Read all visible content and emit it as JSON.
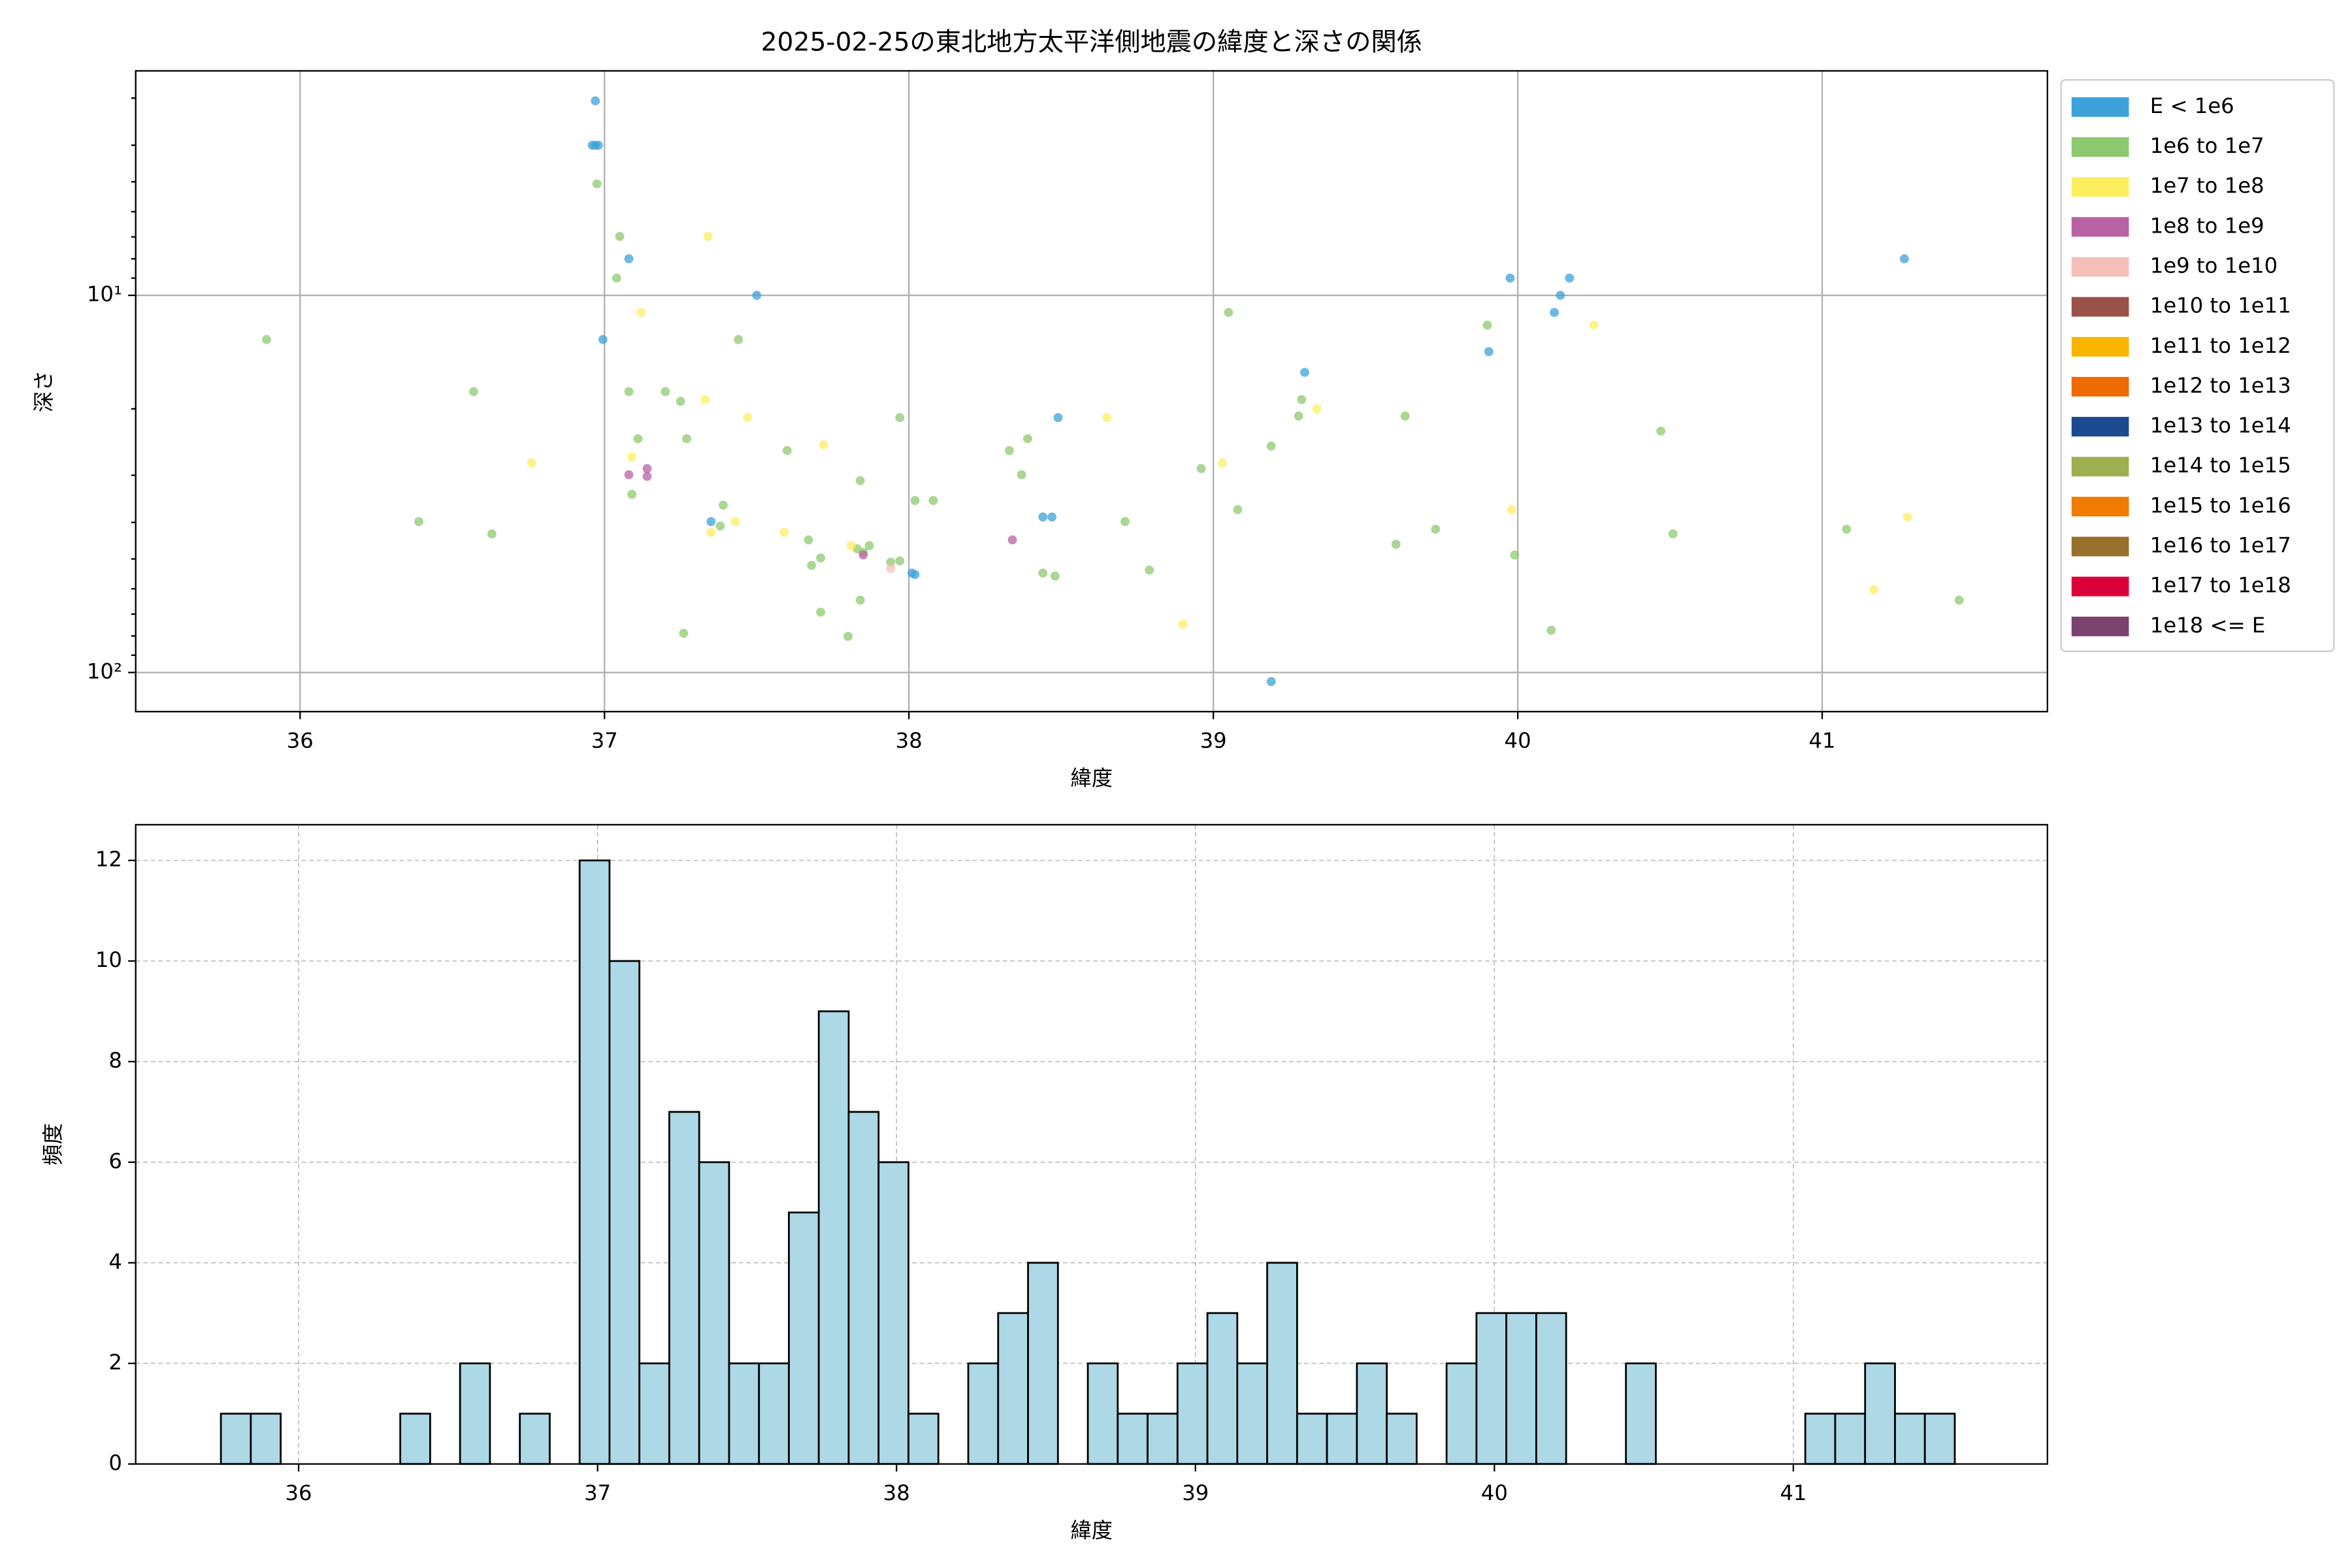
{
  "chart_data": [
    {
      "type": "scatter",
      "title": "2025-02-25の東北地方太平洋側地震の緯度と深さの関係",
      "xlabel": "緯度",
      "ylabel": "深さ",
      "xlim": [
        35.46,
        41.74
      ],
      "xticks": [
        36,
        37,
        38,
        39,
        40,
        41
      ],
      "yscale": "log",
      "ylim": [
        127,
        2.54
      ],
      "yticks": [
        {
          "value": 10,
          "label": "10¹"
        },
        {
          "value": 100,
          "label": "10²"
        }
      ],
      "yticks_minor": [
        3,
        4,
        5,
        6,
        7,
        8,
        9,
        20,
        30,
        40,
        50,
        60,
        70,
        80,
        90
      ],
      "grid": true,
      "grid_style": "solid",
      "legend": "right",
      "series": [
        {
          "name": "E < 1e6",
          "color": "#3ea2da",
          "x": [
            36.97,
            36.96,
            36.97,
            36.98,
            37.08,
            36.995,
            37.5,
            37.35,
            38.01,
            38.02,
            38.44,
            38.47,
            38.49,
            39.3,
            39.19,
            39.975,
            39.905,
            40.12,
            40.14,
            40.17,
            41.27
          ],
          "values": [
            3.05,
            4.0,
            4.0,
            4.0,
            8.0,
            13.1,
            10,
            39.8,
            54.5,
            55,
            38.7,
            38.7,
            21.1,
            16.0,
            105.7,
            9.0,
            14.1,
            11.1,
            10,
            9.0,
            8.0
          ]
        },
        {
          "name": "1e6 to 1e7",
          "color": "#8dc96f",
          "x": [
            35.89,
            36.975,
            37.05,
            37.04,
            37.08,
            37.11,
            37.09,
            37.2,
            37.25,
            37.27,
            37.39,
            37.38,
            37.26,
            37.44,
            36.57,
            36.39,
            36.63,
            37.6,
            37.67,
            37.68,
            37.71,
            37.71,
            37.84,
            37.84,
            37.8,
            37.83,
            37.85,
            37.87,
            37.94,
            37.97,
            37.97,
            38.02,
            38.08,
            38.33,
            38.39,
            38.37,
            38.44,
            38.48,
            38.71,
            38.79,
            38.96,
            39.05,
            39.08,
            39.19,
            39.28,
            39.29,
            39.63,
            39.6,
            39.73,
            39.9,
            39.99,
            40.11,
            40.47,
            40.51,
            41.08,
            41.45
          ],
          "values": [
            13.1,
            5.06,
            6.98,
            9.0,
            18,
            24,
            33.7,
            18,
            19.1,
            24,
            36,
            40.9,
            78.7,
            13.1,
            18,
            39.8,
            42.9,
            25.8,
            44.5,
            52,
            49.7,
            69.2,
            31,
            64.3,
            80.2,
            47,
            48,
            46.1,
            51,
            50.6,
            21.1,
            35,
            35,
            25.8,
            24,
            29.9,
            54.5,
            55.5,
            39.8,
            53.5,
            28.8,
            11.1,
            37,
            25.1,
            20.9,
            18.9,
            20.9,
            45.7,
            41.7,
            12,
            48.8,
            77.3,
            22.9,
            42.9,
            41.7,
            64.3
          ]
        },
        {
          "name": "1e7 to 1e8",
          "color": "#fdee60",
          "x": [
            37.34,
            37.12,
            37.33,
            37.47,
            37.09,
            36.76,
            37.72,
            37.43,
            37.35,
            37.59,
            37.81,
            38.65,
            39.03,
            39.34,
            38.9,
            39.98,
            40.25,
            41.28,
            41.17
          ],
          "values": [
            6.98,
            11.1,
            18.9,
            21.1,
            26.8,
            27.8,
            24.9,
            39.8,
            42.5,
            42.5,
            46.1,
            21.1,
            27.8,
            20,
            74.5,
            37,
            12,
            38.7,
            60.3
          ]
        },
        {
          "name": "1e8 to 1e9",
          "color": "#b861a3",
          "x": [
            37.08,
            37.14,
            37.14,
            38.34,
            37.85
          ],
          "values": [
            29.9,
            28.8,
            30.2,
            44.5,
            48.8
          ]
        },
        {
          "name": "1e9 to 1e10",
          "color": "#f4bfb9",
          "x": [
            37.94
          ],
          "values": [
            53
          ]
        },
        {
          "name": "1e10 to 1e11",
          "color": "#9a5148",
          "x": [],
          "values": []
        },
        {
          "name": "1e11 to 1e12",
          "color": "#f7b500",
          "x": [],
          "values": []
        },
        {
          "name": "1e12 to 1e13",
          "color": "#ef6a00",
          "x": [],
          "values": []
        },
        {
          "name": "1e13 to 1e14",
          "color": "#1c4a8f",
          "x": [],
          "values": []
        },
        {
          "name": "1e14 to 1e15",
          "color": "#9daf4f",
          "x": [],
          "values": []
        },
        {
          "name": "1e15 to 1e16",
          "color": "#ef7b00",
          "x": [],
          "values": []
        },
        {
          "name": "1e16 to 1e17",
          "color": "#98702c",
          "x": [],
          "values": []
        },
        {
          "name": "1e17 to 1e18",
          "color": "#dc0039",
          "x": [],
          "values": []
        },
        {
          "name": "1e18 <= E",
          "color": "#7b4270",
          "x": [],
          "values": []
        }
      ]
    },
    {
      "type": "histogram",
      "xlabel": "緯度",
      "ylabel": "頻度",
      "color": "#add8e6",
      "xlim": [
        35.455,
        41.85
      ],
      "xticks": [
        36,
        37,
        38,
        39,
        40,
        41
      ],
      "ylim": [
        0,
        12.71
      ],
      "yticks": [
        0,
        2,
        4,
        6,
        8,
        10,
        12
      ],
      "grid": true,
      "grid_style": "dashed",
      "bins": [
        35.74,
        35.84,
        35.94,
        36.04,
        36.14,
        36.24,
        36.34,
        36.44,
        36.54,
        36.64,
        36.74,
        36.84,
        36.94,
        37.04,
        37.14,
        37.24,
        37.34,
        37.44,
        37.54,
        37.64,
        37.74,
        37.84,
        37.94,
        38.04,
        38.14,
        38.24,
        38.34,
        38.44,
        38.54,
        38.64,
        38.74,
        38.84,
        38.94,
        39.04,
        39.14,
        39.24,
        39.34,
        39.44,
        39.54,
        39.64,
        39.74,
        39.84,
        39.94,
        40.04,
        40.14,
        40.24,
        40.34,
        40.44,
        40.54,
        40.64,
        40.74,
        40.84,
        40.94,
        41.04,
        41.14,
        41.24,
        41.34,
        41.44,
        41.54
      ],
      "values": [
        1,
        1,
        0,
        0,
        0,
        0,
        1,
        0,
        2,
        0,
        1,
        0,
        12,
        10,
        2,
        7,
        6,
        2,
        2,
        5,
        9,
        7,
        6,
        1,
        0,
        2,
        3,
        4,
        0,
        2,
        1,
        1,
        2,
        3,
        2,
        4,
        1,
        1,
        2,
        1,
        0,
        2,
        3,
        3,
        3,
        0,
        0,
        2,
        0,
        0,
        0,
        0,
        0,
        1,
        1,
        2,
        1,
        1
      ]
    }
  ]
}
